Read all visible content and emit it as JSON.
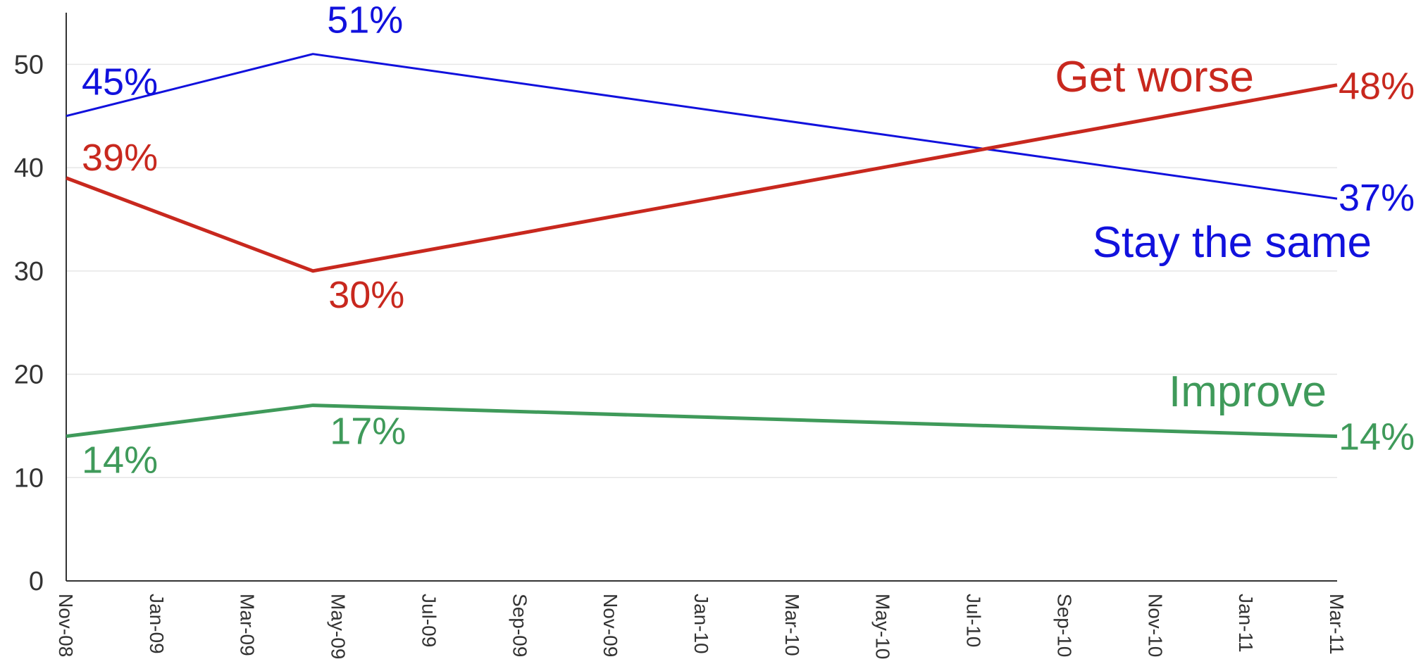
{
  "chart_data": {
    "type": "line",
    "title": "",
    "xlabel": "",
    "ylabel": "",
    "ylim": [
      0,
      55
    ],
    "yticks": [
      0,
      10,
      20,
      30,
      40,
      50
    ],
    "grid": true,
    "xlim": [
      "2008-11-01",
      "2011-03-01"
    ],
    "xticks": [
      "Nov-08",
      "Jan-09",
      "Mar-09",
      "May-09",
      "Jul-09",
      "Sep-09",
      "Nov-09",
      "Jan-10",
      "Mar-10",
      "May-10",
      "Jul-10",
      "Sep-10",
      "Nov-10",
      "Jan-11",
      "Mar-11"
    ],
    "series": [
      {
        "name": "Stay the same",
        "color": "#1111dd",
        "x": [
          "2008-11-01",
          "2009-04-15",
          "2011-03-01"
        ],
        "values": [
          45,
          51,
          37
        ],
        "labels": [
          "45%",
          "51%",
          "37%"
        ]
      },
      {
        "name": "Get worse",
        "color": "#c8281e",
        "x": [
          "2008-11-01",
          "2009-04-15",
          "2011-03-01"
        ],
        "values": [
          39,
          30,
          48
        ],
        "labels": [
          "39%",
          "30%",
          "48%"
        ]
      },
      {
        "name": "Improve",
        "color": "#3f9a5a",
        "x": [
          "2008-11-01",
          "2009-04-15",
          "2011-03-01"
        ],
        "values": [
          14,
          17,
          14
        ],
        "labels": [
          "14%",
          "17%",
          "14%"
        ]
      }
    ]
  }
}
